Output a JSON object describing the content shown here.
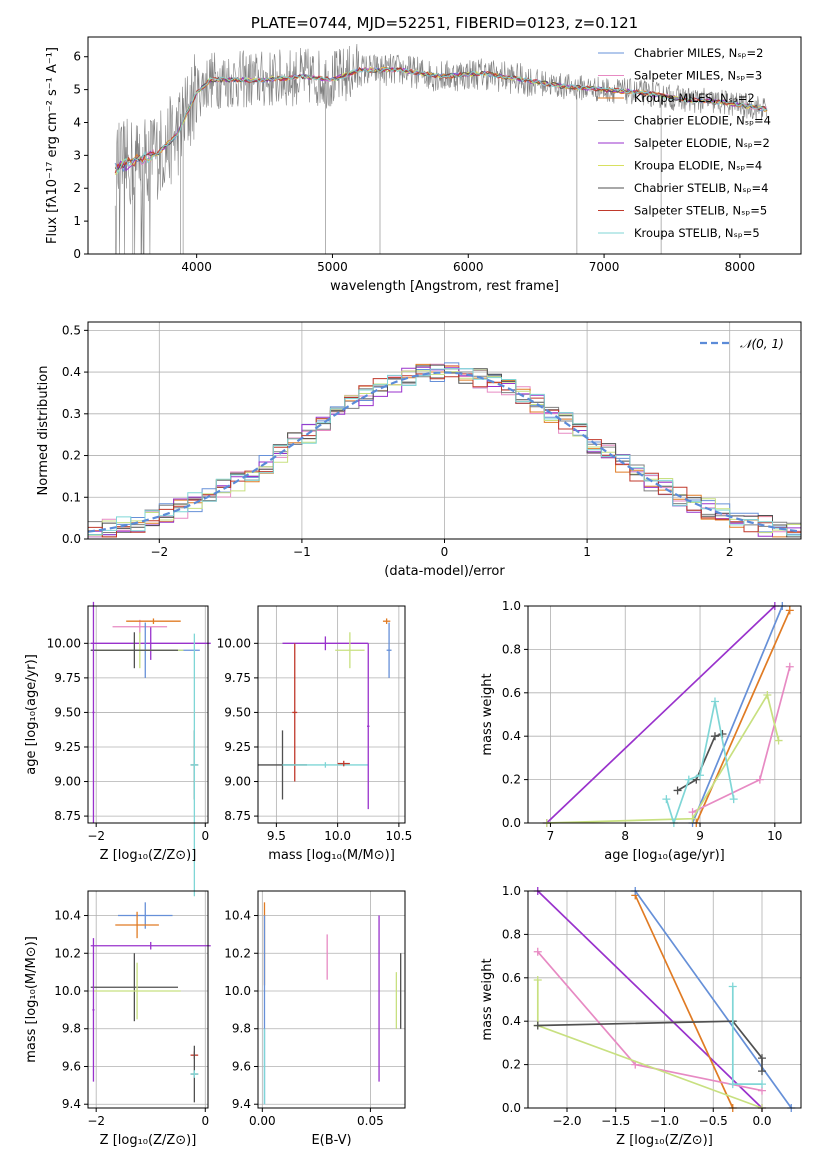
{
  "chart_data": [
    {
      "type": "line",
      "panel": "spectrum",
      "title": "PLATE=0744, MJD=52251, FIBERID=0123, z=0.121",
      "xlabel": "wavelength [Angstrom, rest frame]",
      "ylabel": "Flux [fλ10⁻¹⁷ erg cm⁻² s⁻¹ A⁻¹]",
      "xlim": [
        3200,
        8450
      ],
      "ylim": [
        0,
        6.6
      ],
      "x_ticks": [
        "4000",
        "5000",
        "6000",
        "7000",
        "8000"
      ],
      "y_ticks": [
        "0",
        "1",
        "2",
        "3",
        "4",
        "5",
        "6"
      ],
      "legend_position": "top-right",
      "legend": [
        {
          "label": "Chabrier MILES, Nₛₚ=2",
          "color": "#6690d8"
        },
        {
          "label": "Salpeter MILES, Nₛₚ=3",
          "color": "#e78ac3"
        },
        {
          "label": "Kroupa MILES, Nₛₚ=2",
          "color": "#e07b24"
        },
        {
          "label": "Chabrier ELODIE, Nₛₚ=4",
          "color": "#808080"
        },
        {
          "label": "Salpeter ELODIE, Nₛₚ=2",
          "color": "#9932cc"
        },
        {
          "label": "Kroupa ELODIE, Nₛₚ=4",
          "color": "#d8e060"
        },
        {
          "label": "Chabrier STELIB, Nₛₚ=4",
          "color": "#505050"
        },
        {
          "label": "Salpeter STELIB, Nₛₚ=5",
          "color": "#c0392b"
        },
        {
          "label": "Kroupa STELIB, Nₛₚ=5",
          "color": "#7fd6d6"
        }
      ],
      "continuum": {
        "x": [
          3400,
          3550,
          3700,
          3850,
          4000,
          4100,
          4300,
          4500,
          4800,
          5000,
          5200,
          5500,
          5800,
          6100,
          6400,
          6700,
          7000,
          7300,
          7600,
          7900,
          8200
        ],
        "y": [
          2.6,
          2.8,
          3.0,
          3.6,
          4.9,
          5.3,
          5.3,
          5.3,
          5.4,
          5.3,
          5.6,
          5.6,
          5.4,
          5.5,
          5.3,
          5.1,
          5.0,
          4.9,
          4.7,
          4.6,
          4.4
        ]
      }
    },
    {
      "type": "step",
      "panel": "residuals",
      "xlabel": "(data-model)/error",
      "ylabel": "Normed distribution",
      "xlim": [
        -2.5,
        2.5
      ],
      "ylim": [
        0,
        0.52
      ],
      "x_ticks": [
        "−2",
        "−1",
        "0",
        "1",
        "2"
      ],
      "y_ticks": [
        "0.0",
        "0.1",
        "0.2",
        "0.3",
        "0.4",
        "0.5"
      ],
      "legend_position": "top-right",
      "legend_label": "𝒩(0, 1)",
      "bin_width": 0.1,
      "series_colors": [
        "#6690d8",
        "#e78ac3",
        "#e07b24",
        "#808080",
        "#9932cc",
        "#c8e080",
        "#505050",
        "#c0392b",
        "#7fd6d6"
      ]
    },
    {
      "type": "errorbar",
      "panel": "age-vs-Z",
      "xlabel": "Z [log₁₀(Z/Z⊙)]",
      "ylabel": "age  [log₁₀(age/yr)]",
      "xlim": [
        -2.15,
        0.05
      ],
      "ylim": [
        8.7,
        10.27
      ],
      "x_ticks": [
        "−2",
        "0"
      ],
      "y_ticks": [
        "8.75",
        "9.00",
        "9.25",
        "9.50",
        "9.75",
        "10.00"
      ],
      "points": [
        {
          "x": -1.0,
          "y": 10.0,
          "xerr": 1.1,
          "yerr": 0.12,
          "color": "#9932cc"
        },
        {
          "x": -1.2,
          "y": 10.12,
          "xerr": 0.5,
          "yerr": 0.05,
          "color": "#e78ac3"
        },
        {
          "x": -0.95,
          "y": 10.16,
          "xerr": 0.5,
          "yerr": 0.02,
          "color": "#e07b24"
        },
        {
          "x": -1.1,
          "y": 9.95,
          "xerr": 1.0,
          "yerr": 0.2,
          "color": "#6690d8"
        },
        {
          "x": -1.2,
          "y": 9.95,
          "xerr": 0.8,
          "yerr": 0.13,
          "color": "#c8e080"
        },
        {
          "x": -1.3,
          "y": 9.95,
          "xerr": 0.8,
          "yerr": 0.13,
          "color": "#505050"
        },
        {
          "x": -0.2,
          "y": 9.12,
          "xerr": 0.07,
          "yerr": 0.25,
          "color": "#505050"
        },
        {
          "x": -0.2,
          "y": 9.12,
          "xerr": 0.07,
          "yerr": 0.95,
          "color": "#7fd6d6"
        },
        {
          "x": -2.05,
          "y": 9.5,
          "xerr": 0.02,
          "yerr": 0.8,
          "color": "#9932cc"
        }
      ]
    },
    {
      "type": "errorbar",
      "panel": "age-vs-mass",
      "xlabel": "mass [log₁₀(M/M⊙)]",
      "xlim": [
        9.35,
        10.55
      ],
      "ylim": [
        8.7,
        10.27
      ],
      "x_ticks": [
        "9.5",
        "10.0",
        "10.5"
      ],
      "y_ticks": [
        "8.75",
        "9.00",
        "9.25",
        "9.50",
        "9.75",
        "10.00"
      ],
      "points": [
        {
          "x": 9.9,
          "y": 10.0,
          "xerr": 0.35,
          "yerr": 0.05,
          "color": "#9932cc"
        },
        {
          "x": 10.1,
          "y": 9.95,
          "xerr": 0.12,
          "yerr": 0.13,
          "color": "#c8e080"
        },
        {
          "x": 10.4,
          "y": 10.16,
          "xerr": 0.03,
          "yerr": 0.02,
          "color": "#e07b24"
        },
        {
          "x": 10.42,
          "y": 9.95,
          "xerr": 0.02,
          "yerr": 0.2,
          "color": "#6690d8"
        },
        {
          "x": 9.55,
          "y": 9.12,
          "xerr": 0.2,
          "yerr": 0.25,
          "color": "#505050"
        },
        {
          "x": 9.65,
          "y": 9.5,
          "xerr": 0.02,
          "yerr": 0.5,
          "color": "#c0392b"
        },
        {
          "x": 9.9,
          "y": 9.12,
          "xerr": 0.35,
          "yerr": 0.02,
          "color": "#7fd6d6"
        },
        {
          "x": 10.05,
          "y": 9.13,
          "xerr": 0.05,
          "yerr": 0.02,
          "color": "#c0392b"
        },
        {
          "x": 10.25,
          "y": 9.4,
          "xerr": 0.01,
          "yerr": 0.6,
          "color": "#9932cc"
        }
      ]
    },
    {
      "type": "line",
      "panel": "weight-vs-age",
      "xlabel": "age  [log₁₀(age/yr)]",
      "ylabel": "mass weight",
      "xlim": [
        6.7,
        10.35
      ],
      "ylim": [
        0,
        1
      ],
      "x_ticks": [
        "7",
        "8",
        "9",
        "10"
      ],
      "y_ticks": [
        "0.0",
        "0.2",
        "0.4",
        "0.6",
        "0.8",
        "1.0"
      ],
      "series": [
        {
          "color": "#9932cc",
          "x": [
            6.95,
            10.0
          ],
          "y": [
            0.0,
            1.0
          ]
        },
        {
          "color": "#e07b24",
          "x": [
            8.95,
            10.2
          ],
          "y": [
            0.0,
            0.98
          ]
        },
        {
          "color": "#6690d8",
          "x": [
            8.9,
            10.1
          ],
          "y": [
            0.0,
            1.0
          ]
        },
        {
          "color": "#e78ac3",
          "x": [
            8.9,
            9.8,
            10.2
          ],
          "y": [
            0.05,
            0.2,
            0.72
          ]
        },
        {
          "color": "#c8e080",
          "x": [
            6.95,
            8.9,
            9.9,
            10.05
          ],
          "y": [
            0.0,
            0.02,
            0.59,
            0.38
          ]
        },
        {
          "color": "#505050",
          "x": [
            8.7,
            8.95,
            9.2,
            9.3
          ],
          "y": [
            0.15,
            0.2,
            0.4,
            0.41
          ]
        },
        {
          "color": "#7fd6d6",
          "x": [
            8.55,
            8.65,
            8.85,
            9.0,
            9.2,
            9.45
          ],
          "y": [
            0.11,
            0.0,
            0.2,
            0.22,
            0.56,
            0.11
          ]
        }
      ]
    },
    {
      "type": "errorbar",
      "panel": "mass-vs-Z",
      "xlabel": "Z [log₁₀(Z/Z⊙)]",
      "ylabel": "mass [log₁₀(M/M⊙)]",
      "xlim": [
        -2.15,
        0.05
      ],
      "ylim": [
        9.38,
        10.53
      ],
      "x_ticks": [
        "−2",
        "0"
      ],
      "y_ticks": [
        "9.4",
        "9.6",
        "9.8",
        "10.0",
        "10.2",
        "10.4"
      ],
      "points": [
        {
          "x": -1.0,
          "y": 10.24,
          "xerr": 1.1,
          "yerr": 0.02,
          "color": "#9932cc"
        },
        {
          "x": -1.1,
          "y": 10.4,
          "xerr": 0.5,
          "yerr": 0.07,
          "color": "#6690d8"
        },
        {
          "x": -1.25,
          "y": 10.35,
          "xerr": 0.4,
          "yerr": 0.07,
          "color": "#e07b24"
        },
        {
          "x": -1.3,
          "y": 10.02,
          "xerr": 0.8,
          "yerr": 0.18,
          "color": "#505050"
        },
        {
          "x": -1.25,
          "y": 10.0,
          "xerr": 0.8,
          "yerr": 0.15,
          "color": "#c8e080"
        },
        {
          "x": -2.05,
          "y": 9.9,
          "xerr": 0.02,
          "yerr": 0.38,
          "color": "#9932cc"
        },
        {
          "x": -0.2,
          "y": 9.66,
          "xerr": 0.07,
          "yerr": 0.02,
          "color": "#c0392b"
        },
        {
          "x": -0.2,
          "y": 9.56,
          "xerr": 0.07,
          "yerr": 0.15,
          "color": "#505050"
        },
        {
          "x": -0.2,
          "y": 9.56,
          "xerr": 0.07,
          "yerr": 0.02,
          "color": "#7fd6d6"
        }
      ]
    },
    {
      "type": "errorbar",
      "panel": "mass-vs-EBV",
      "xlabel": "E(B-V)",
      "xlim": [
        -0.002,
        0.066
      ],
      "ylim": [
        9.38,
        10.53
      ],
      "x_ticks": [
        "0.00",
        "0.05"
      ],
      "y_ticks": [
        "9.4",
        "9.6",
        "9.8",
        "10.0",
        "10.2",
        "10.4"
      ],
      "points": [
        {
          "x": 0.001,
          "y": 10.25,
          "xerr": 0.0,
          "yerr": 0.22,
          "color": "#e07b24"
        },
        {
          "x": 0.001,
          "y": 9.9,
          "xerr": 0.0,
          "yerr": 0.5,
          "color": "#6690d8"
        },
        {
          "x": 0.001,
          "y": 9.6,
          "xerr": 0.0,
          "yerr": 0.2,
          "color": "#7fd6d6"
        },
        {
          "x": 0.03,
          "y": 10.18,
          "xerr": 0.0,
          "yerr": 0.12,
          "color": "#e78ac3"
        },
        {
          "x": 0.054,
          "y": 9.96,
          "xerr": 0.0,
          "yerr": 0.44,
          "color": "#9932cc"
        },
        {
          "x": 0.062,
          "y": 9.95,
          "xerr": 0.0,
          "yerr": 0.15,
          "color": "#c8e080"
        },
        {
          "x": 0.064,
          "y": 10.0,
          "xerr": 0.0,
          "yerr": 0.2,
          "color": "#505050"
        }
      ]
    },
    {
      "type": "line",
      "panel": "weight-vs-Z",
      "xlabel": "Z [log₁₀(Z/Z⊙)]",
      "ylabel": "mass weight",
      "xlim": [
        -2.4,
        0.4
      ],
      "ylim": [
        0,
        1
      ],
      "x_ticks": [
        "−2.0",
        "−1.5",
        "−1.0",
        "−0.5",
        "0.0"
      ],
      "y_ticks": [
        "0.0",
        "0.2",
        "0.4",
        "0.6",
        "0.8",
        "1.0"
      ],
      "series": [
        {
          "color": "#9932cc",
          "x": [
            -2.3,
            0.0
          ],
          "y": [
            1.0,
            0.0
          ]
        },
        {
          "color": "#e07b24",
          "x": [
            -1.3,
            -0.3
          ],
          "y": [
            0.98,
            0.0
          ]
        },
        {
          "color": "#6690d8",
          "x": [
            -1.3,
            0.3
          ],
          "y": [
            1.0,
            0.0
          ]
        },
        {
          "color": "#e78ac3",
          "x": [
            -2.3,
            -1.3,
            0.0
          ],
          "y": [
            0.72,
            0.2,
            0.08
          ]
        },
        {
          "color": "#c8e080",
          "x": [
            -2.3,
            -2.3,
            0.0
          ],
          "y": [
            0.59,
            0.38,
            0.0
          ]
        },
        {
          "color": "#505050",
          "x": [
            -2.3,
            -0.3,
            0.0,
            0.0
          ],
          "y": [
            0.38,
            0.4,
            0.23,
            0.17
          ]
        },
        {
          "color": "#7fd6d6",
          "x": [
            -0.3,
            -0.3,
            0.0
          ],
          "y": [
            0.56,
            0.11,
            0.11
          ]
        }
      ]
    }
  ]
}
